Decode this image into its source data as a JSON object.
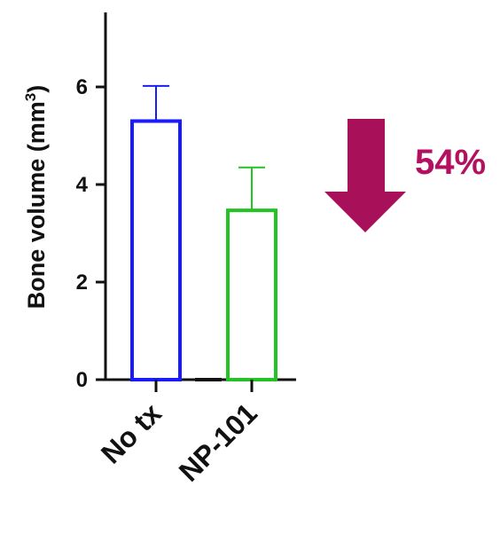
{
  "chart_data": {
    "type": "bar",
    "categories": [
      "No tx",
      "NP-101"
    ],
    "values": [
      5.3,
      3.47
    ],
    "errors": [
      0.72,
      0.88
    ],
    "bar_colors": [
      "#1a1aff",
      "#22c322"
    ],
    "ylabel": "Bone volume (mm",
    "ylabel_sup": "3",
    "ylabel_close": ")",
    "ylim": [
      0,
      7.6
    ],
    "yticks": [
      0,
      2,
      4,
      6
    ],
    "grid": false,
    "annotation": {
      "text": "54%",
      "color": "#b3105f",
      "arrow_direction": "down",
      "arrow_color": "#a8105a"
    }
  }
}
